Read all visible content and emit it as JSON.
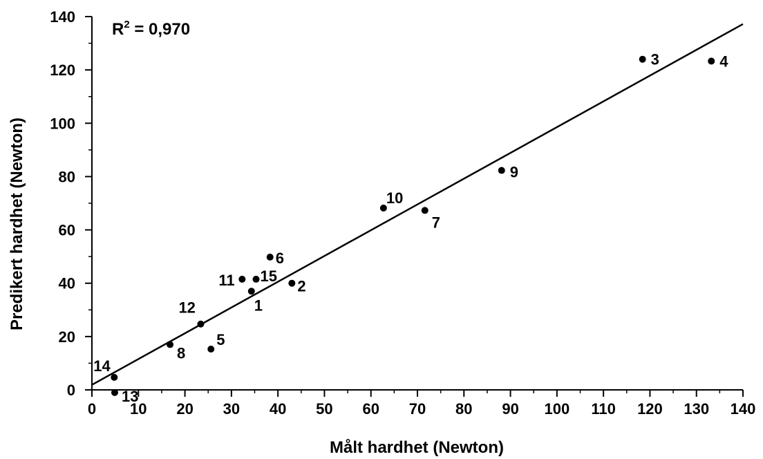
{
  "chart_data": {
    "type": "scatter",
    "title": "",
    "xlabel": "Målt hardhet (Newton)",
    "ylabel": "Predikert hardhet (Newton)",
    "xlim": [
      0,
      140
    ],
    "ylim": [
      0,
      140
    ],
    "xticks": [
      0,
      10,
      20,
      30,
      40,
      50,
      60,
      70,
      80,
      90,
      100,
      110,
      120,
      130,
      140
    ],
    "yticks": [
      0,
      20,
      40,
      60,
      80,
      100,
      120,
      140
    ],
    "grid": false,
    "annotation": {
      "prefix": "R",
      "sup": "2",
      "suffix": " = 0,970"
    },
    "fit_line": {
      "x": [
        0,
        140
      ],
      "y": [
        1.9,
        137.2
      ]
    },
    "points": [
      {
        "label": "1",
        "x": 34.3,
        "y": 37.0
      },
      {
        "label": "2",
        "x": 43.0,
        "y": 40.0
      },
      {
        "label": "3",
        "x": 118.4,
        "y": 124.0
      },
      {
        "label": "4",
        "x": 133.2,
        "y": 123.3
      },
      {
        "label": "5",
        "x": 25.6,
        "y": 15.3
      },
      {
        "label": "6",
        "x": 38.3,
        "y": 49.8
      },
      {
        "label": "7",
        "x": 71.6,
        "y": 67.3
      },
      {
        "label": "8",
        "x": 16.8,
        "y": 17.0
      },
      {
        "label": "9",
        "x": 88.1,
        "y": 82.3
      },
      {
        "label": "10",
        "x": 62.7,
        "y": 68.2
      },
      {
        "label": "11",
        "x": 32.3,
        "y": 41.5
      },
      {
        "label": "12",
        "x": 23.4,
        "y": 24.7
      },
      {
        "label": "13",
        "x": 4.9,
        "y": -1.0
      },
      {
        "label": "14",
        "x": 4.8,
        "y": 4.7
      },
      {
        "label": "15",
        "x": 35.3,
        "y": 41.5
      }
    ]
  }
}
